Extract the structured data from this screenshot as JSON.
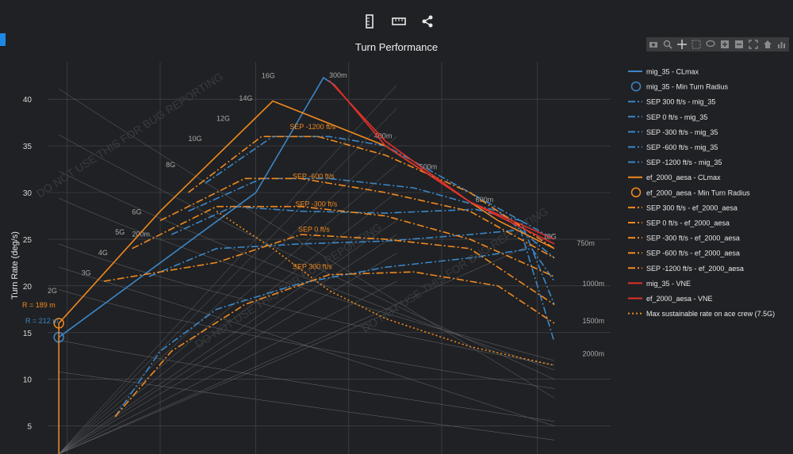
{
  "toolbar": {
    "icons": [
      "ruler-vertical-icon",
      "ruler-horizontal-icon",
      "share-icon"
    ]
  },
  "modebar": {
    "icons": [
      "camera-icon",
      "zoom-icon",
      "pan-icon",
      "box-select-icon",
      "lasso-icon",
      "zoom-in-icon",
      "zoom-out-icon",
      "autoscale-icon",
      "reset-axes-icon",
      "plotly-logo-icon"
    ]
  },
  "colors": {
    "background": "#202124",
    "mig": "#3b87c8",
    "ef": "#f08a1f",
    "vne": "#e0312a",
    "grid": "#4a4b4e"
  },
  "chart_data": {
    "type": "line",
    "title": "Turn Performance",
    "ylabel": "Turn Rate (deg/s)",
    "xlabel": "",
    "ylim": [
      2,
      44
    ],
    "yticks": [
      5,
      10,
      15,
      20,
      25,
      30,
      35,
      40
    ],
    "legend_position": "right",
    "watermark": "DO NOT USE THIS FOR BUG REPORTING",
    "g_labels": [
      "2G",
      "3G",
      "4G",
      "5G",
      "6G",
      "8G",
      "10G",
      "12G",
      "14G",
      "16G",
      "18G"
    ],
    "radius_labels": [
      "200m",
      "300m",
      "400m",
      "500m",
      "600m",
      "750m",
      "1000m",
      "1500m",
      "2000m"
    ],
    "annotations": {
      "mig_radius": "R = 212 m",
      "ef_radius": "R = 189 m",
      "sep_labels": [
        "SEP -1200 ft/s",
        "SEP -600 ft/s",
        "SEP -300 ft/s",
        "SEP 0 ft/s",
        "SEP 300 ft/s"
      ]
    },
    "series": [
      {
        "name": "mig_35 - CLmax",
        "color": "#3b87c8",
        "dash": "solid",
        "x": [
          0.02,
          0.37,
          0.49,
          0.51
        ],
        "values": [
          14.5,
          30,
          42.3,
          41.5
        ]
      },
      {
        "name": "mig_35 - Min Turn Radius",
        "color": "#3b87c8",
        "marker": "circle",
        "x": [
          0.02
        ],
        "values": [
          14.5
        ]
      },
      {
        "name": "SEP 300 ft/s - mig_35",
        "color": "#3b87c8",
        "dash": "dashdot",
        "x": [
          0.12,
          0.2,
          0.3,
          0.45,
          0.6,
          0.75,
          0.86,
          0.9
        ],
        "values": [
          6,
          13,
          17.5,
          20.3,
          22,
          23,
          24,
          20.5
        ]
      },
      {
        "name": "SEP 0 ft/s - mig_35",
        "color": "#3b87c8",
        "dash": "dashdot",
        "x": [
          0.18,
          0.3,
          0.45,
          0.6,
          0.75,
          0.84,
          0.9
        ],
        "values": [
          21,
          24,
          24.5,
          24.8,
          25.5,
          26,
          14
        ]
      },
      {
        "name": "SEP -300 ft/s - mig_35",
        "color": "#3b87c8",
        "dash": "dashdot",
        "x": [
          0.22,
          0.33,
          0.45,
          0.6,
          0.76,
          0.84,
          0.9
        ],
        "values": [
          25.5,
          28.5,
          28,
          27.8,
          28.2,
          27,
          18
        ]
      },
      {
        "name": "SEP -600 ft/s - mig_35",
        "color": "#3b87c8",
        "dash": "dashdot",
        "x": [
          0.25,
          0.38,
          0.5,
          0.65,
          0.8,
          0.9
        ],
        "values": [
          28,
          31.5,
          31.5,
          30.5,
          28,
          23
        ]
      },
      {
        "name": "SEP -1200 ft/s - mig_35",
        "color": "#3b87c8",
        "dash": "dashdot",
        "x": [
          0.28,
          0.4,
          0.5,
          0.6,
          0.75,
          0.9
        ],
        "values": [
          31,
          36,
          36,
          35,
          30,
          25
        ]
      },
      {
        "name": "ef_2000_aesa - CLmax",
        "color": "#f08a1f",
        "dash": "solid",
        "x": [
          0.02,
          0.2,
          0.4,
          0.6,
          0.8,
          0.9
        ],
        "values": [
          16,
          28,
          39.8,
          35,
          27,
          24
        ]
      },
      {
        "name": "ef_2000_aesa - Min Turn Radius",
        "color": "#f08a1f",
        "marker": "circle",
        "x": [
          0.02
        ],
        "values": [
          16
        ]
      },
      {
        "name": "SEP 300 ft/s - ef_2000_aesa",
        "color": "#f08a1f",
        "dash": "dashdot",
        "x": [
          0.12,
          0.22,
          0.35,
          0.5,
          0.65,
          0.8,
          0.9
        ],
        "values": [
          6,
          13,
          18,
          21.2,
          21.5,
          20,
          16
        ]
      },
      {
        "name": "SEP 0 ft/s - ef_2000_aesa",
        "color": "#f08a1f",
        "dash": "dashdot",
        "x": [
          0.1,
          0.3,
          0.45,
          0.6,
          0.75,
          0.9
        ],
        "values": [
          20.5,
          22.5,
          25.5,
          25,
          24,
          18
        ]
      },
      {
        "name": "SEP -300 ft/s - ef_2000_aesa",
        "color": "#f08a1f",
        "dash": "dashdot",
        "x": [
          0.15,
          0.3,
          0.45,
          0.6,
          0.75,
          0.9
        ],
        "values": [
          24,
          28.5,
          28.5,
          27.5,
          25,
          21
        ]
      },
      {
        "name": "SEP -600 ft/s - ef_2000_aesa",
        "color": "#f08a1f",
        "dash": "dashdot",
        "x": [
          0.2,
          0.35,
          0.45,
          0.6,
          0.75,
          0.9
        ],
        "values": [
          27,
          31.5,
          31.5,
          30,
          28,
          23
        ]
      },
      {
        "name": "SEP -1200 ft/s - ef_2000_aesa",
        "color": "#f08a1f",
        "dash": "dashdot",
        "x": [
          0.25,
          0.38,
          0.48,
          0.6,
          0.75,
          0.9
        ],
        "values": [
          30,
          36,
          36,
          34,
          30,
          24
        ]
      },
      {
        "name": "mig_35 - VNE",
        "color": "#e0312a",
        "dash": "solid",
        "x": [
          0.51,
          0.6,
          0.75,
          0.9
        ],
        "values": [
          41.5,
          35,
          29,
          25
        ]
      },
      {
        "name": "ef_2000_aesa - VNE",
        "color": "#e0312a",
        "dash": "solid",
        "x": [
          0.5,
          0.6,
          0.75,
          0.9
        ],
        "values": [
          42,
          35.5,
          29,
          24.5
        ]
      },
      {
        "name": "Max sustainable rate on ace crew (7.5G)",
        "color": "#f08a1f",
        "dash": "dot",
        "x": [
          0.3,
          0.4,
          0.5,
          0.6,
          0.75,
          0.9
        ],
        "values": [
          28,
          24,
          19.5,
          16.5,
          13.5,
          11.5
        ]
      }
    ]
  }
}
